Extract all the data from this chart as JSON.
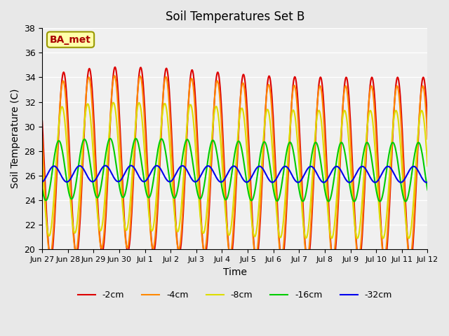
{
  "title": "Soil Temperatures Set B",
  "xlabel": "Time",
  "ylabel": "Soil Temperature (C)",
  "ylim": [
    20,
    38
  ],
  "yticks": [
    20,
    22,
    24,
    26,
    28,
    30,
    32,
    34,
    36,
    38
  ],
  "annotation_text": "BA_met",
  "colors": {
    "-2cm": "#dd0000",
    "-4cm": "#ff8800",
    "-8cm": "#dddd00",
    "-16cm": "#00cc00",
    "-32cm": "#0000ee"
  },
  "legend_labels": [
    "-2cm",
    "-4cm",
    "-8cm",
    "-16cm",
    "-32cm"
  ],
  "xtick_labels": [
    "Jun 27",
    "Jun 28",
    "Jun 29",
    "Jun 30",
    "Jul 1",
    "Jul 2",
    "Jul 3",
    "Jul 4",
    "Jul 5",
    "Jul 6",
    "Jul 7",
    "Jul 8",
    "Jul 9",
    "Jul 10",
    "Jul 11",
    "Jul 12"
  ],
  "background_color": "#e8e8e8",
  "plot_bg_color": "#f0f0f0",
  "grid_color": "#ffffff",
  "linewidth": 1.5
}
